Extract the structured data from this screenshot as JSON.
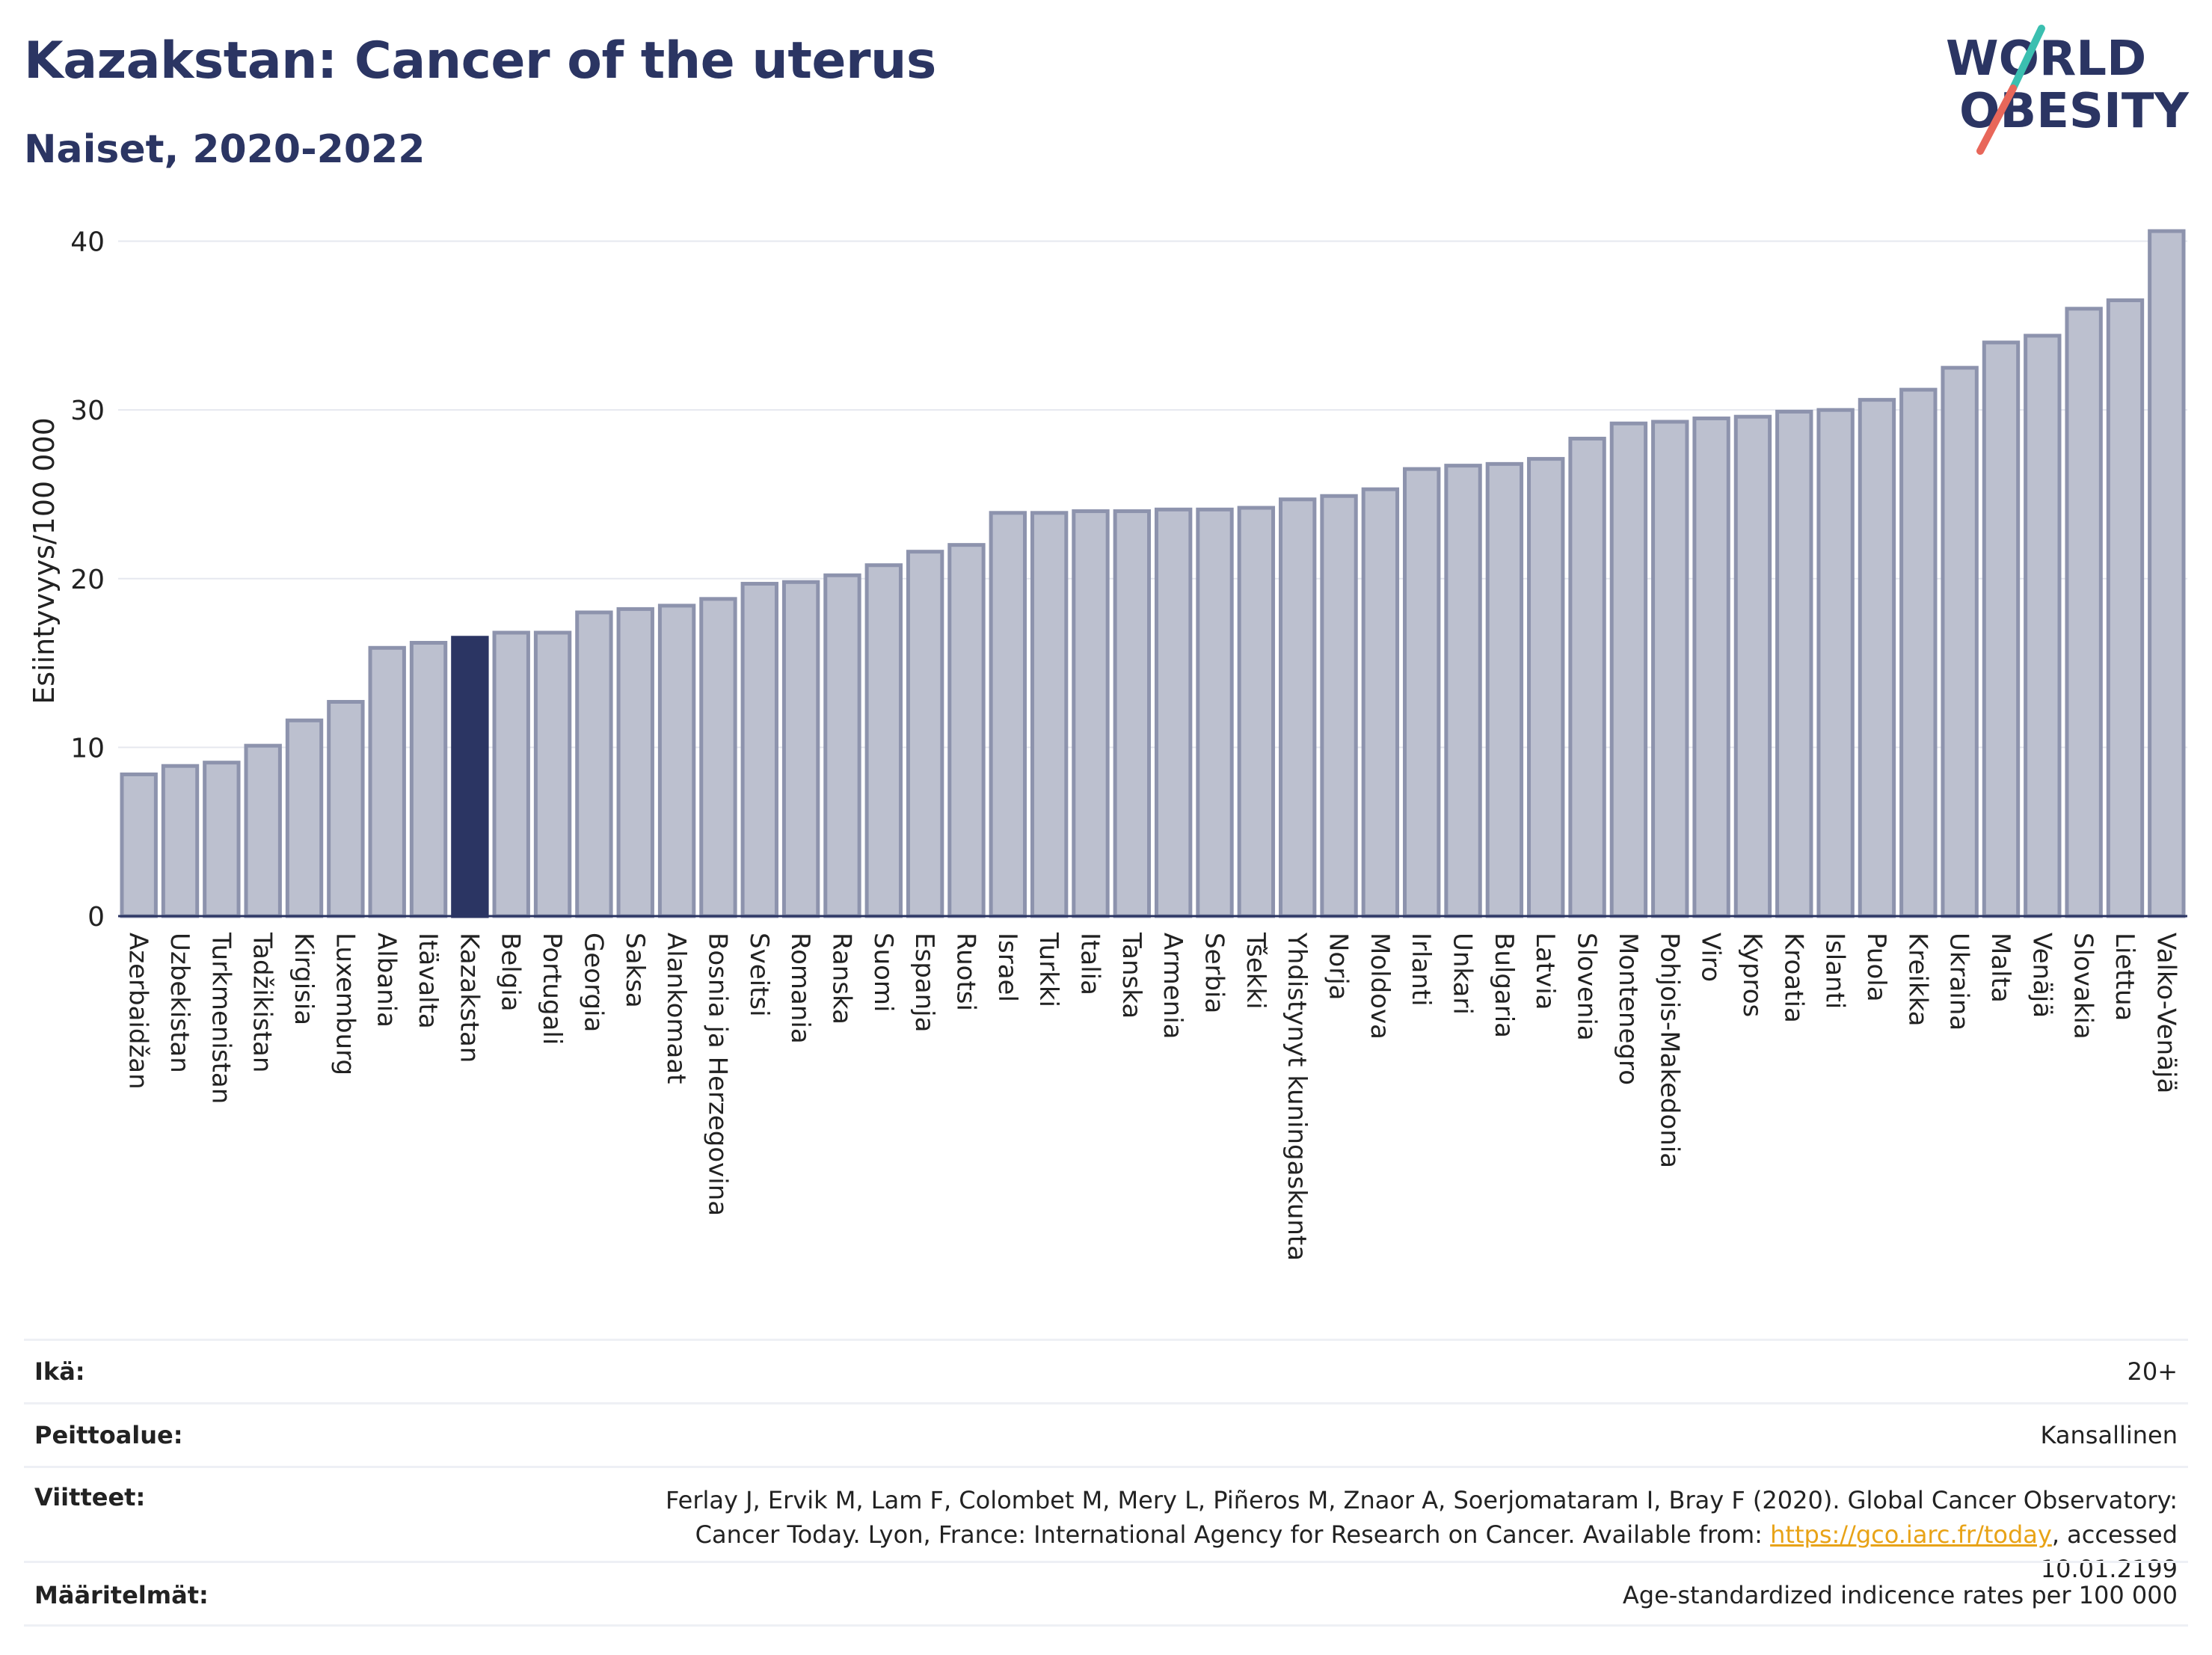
{
  "header": {
    "title": "Kazakstan: Cancer of the uterus",
    "subtitle": "Naiset, 2020-2022"
  },
  "logo": {
    "line1": "WORLD",
    "line2": "OBESITY"
  },
  "chart_data": {
    "type": "bar",
    "ylabel": "Esiintyvyys/100 000",
    "ylim": [
      0,
      41
    ],
    "yticks": [
      0,
      10,
      20,
      30,
      40
    ],
    "grid": true,
    "highlight": "Kazakstan",
    "colors": {
      "bar": "#bcc0cf",
      "bar_edge": "#8d93ad",
      "highlight": "#2b3563"
    },
    "categories": [
      "Azerbaidžan",
      "Uzbekistan",
      "Turkmenistan",
      "Tadžikistan",
      "Kirgisia",
      "Luxemburg",
      "Albania",
      "Itävalta",
      "Kazakstan",
      "Belgia",
      "Portugali",
      "Georgia",
      "Saksa",
      "Alankomaat",
      "Bosnia ja Herzegovina",
      "Sveitsi",
      "Romania",
      "Ranska",
      "Suomi",
      "Espanja",
      "Ruotsi",
      "Israel",
      "Turkki",
      "Italia",
      "Tanska",
      "Armenia",
      "Serbia",
      "Tšekki",
      "Yhdistynyt kuningaskunta",
      "Norja",
      "Moldova",
      "Irlanti",
      "Unkari",
      "Bulgaria",
      "Latvia",
      "Slovenia",
      "Montenegro",
      "Pohjois-Makedonia",
      "Viro",
      "Kypros",
      "Kroatia",
      "Islanti",
      "Puola",
      "Kreikka",
      "Ukraina",
      "Malta",
      "Venäjä",
      "Slovakia",
      "Liettua",
      "Valko-Venäjä"
    ],
    "values": [
      8.4,
      8.9,
      9.1,
      10.1,
      11.6,
      12.7,
      15.9,
      16.2,
      16.5,
      16.8,
      16.8,
      18.0,
      18.2,
      18.4,
      18.8,
      19.7,
      19.8,
      20.2,
      20.8,
      21.6,
      22.0,
      23.9,
      23.9,
      24.0,
      24.0,
      24.1,
      24.1,
      24.2,
      24.7,
      24.9,
      25.3,
      26.5,
      26.7,
      26.8,
      27.1,
      28.3,
      29.2,
      29.3,
      29.5,
      29.6,
      29.9,
      30.0,
      30.6,
      31.2,
      32.5,
      34.0,
      34.4,
      36.0,
      36.5,
      40.6
    ]
  },
  "info": {
    "age_label": "Ikä:",
    "age_value": "20+",
    "coverage_label": "Peittoalue:",
    "coverage_value": "Kansallinen",
    "references_label": "Viitteet:",
    "references_text": "Ferlay J, Ervik M, Lam F, Colombet M, Mery L, Piñeros M, Znaor A, Soerjomataram I, Bray F (2020). Global Cancer Observatory: Cancer Today. Lyon, France: International Agency for Research on Cancer. Available from: ",
    "references_link": "https://gco.iarc.fr/today",
    "references_suffix": ", accessed 10.01.2199",
    "definitions_label": "Määritelmät:",
    "definitions_value": "Age-standardized indicence rates per 100 000"
  }
}
